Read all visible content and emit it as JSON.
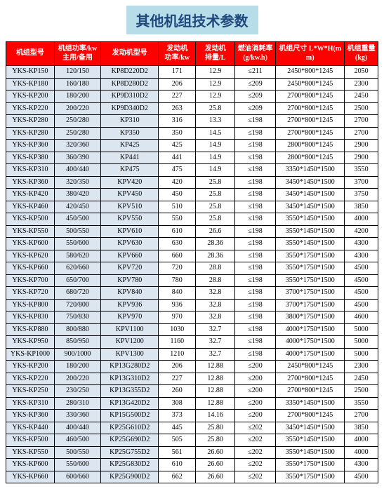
{
  "title": "其他机组技术参数",
  "columns": [
    "机组型号",
    "机组功率/kw\n主用/备用",
    "发动机型号",
    "发动机\n功率/kw",
    "发动机\n排量/L",
    "燃油消耗率\n(g/kw.h)",
    "机组尺寸 L*W*H(mm)",
    "机组重量\n(kg)"
  ],
  "rows": [
    [
      "YKS-KP150",
      "120/150",
      "KP8D220D2",
      "171",
      "12.9",
      "≤211",
      "2450*800*1245",
      "2050"
    ],
    [
      "YKS-KP180",
      "160/180",
      "KP8D280D2",
      "206",
      "12.9",
      "≤209",
      "2450*800*1245",
      "2300"
    ],
    [
      "YKS-KP200",
      "180/200",
      "KP9D310D2",
      "227",
      "12.9",
      "≤209",
      "2700*800*1245",
      "2450"
    ],
    [
      "YKS-KP220",
      "200/220",
      "KP9D340D2",
      "263",
      "25.8",
      "≤209",
      "2700*800*1245",
      "2500"
    ],
    [
      "YKS-KP280",
      "250/280",
      "KP310",
      "316",
      "13.3",
      "≤198",
      "2700*800*1245",
      "2700"
    ],
    [
      "YKS-KP280",
      "250/280",
      "KP350",
      "350",
      "14.5",
      "≤198",
      "2700*800*1245",
      "2700"
    ],
    [
      "YKS-KP360",
      "320/360",
      "KP425",
      "425",
      "14.9",
      "≤198",
      "2800*800*1245",
      "2900"
    ],
    [
      "YKS-KP380",
      "360/390",
      "KP441",
      "441",
      "14.9",
      "≤198",
      "2800*800*1245",
      "2900"
    ],
    [
      "YKS-KP310",
      "400/440",
      "KP475",
      "475",
      "14.9",
      "≤198",
      "3350*1450*1500",
      "3550"
    ],
    [
      "YKS-KP360",
      "320/350",
      "KPV420",
      "420",
      "25.8",
      "≤198",
      "3450*1450*1500",
      "3700"
    ],
    [
      "YKS-KP420",
      "380/420",
      "KPV450",
      "450",
      "25.8",
      "≤198",
      "3450*1450*1500",
      "3750"
    ],
    [
      "YKS-KP460",
      "420/450",
      "KPV510",
      "510",
      "25.8",
      "≤198",
      "3450*1450*1500",
      "3850"
    ],
    [
      "YKS-KP500",
      "450/500",
      "KPV550",
      "550",
      "25.8",
      "≤198",
      "3550*1450*1500",
      "4000"
    ],
    [
      "YKS-KP550",
      "500/550",
      "KPV610",
      "610",
      "26.6",
      "≤198",
      "3550*1450*1500",
      "4200"
    ],
    [
      "YKS-KP600",
      "550/600",
      "KPV630",
      "630",
      "28.36",
      "≤198",
      "3550*1450*1500",
      "4300"
    ],
    [
      "YKS-KP620",
      "580/620",
      "KPV660",
      "660",
      "28.36",
      "≤198",
      "3550*1750*1500",
      "4300"
    ],
    [
      "YKS-KP660",
      "620/660",
      "KPV720",
      "720",
      "28.8",
      "≤198",
      "3550*1750*1500",
      "4500"
    ],
    [
      "YKS-KP700",
      "650/700",
      "KPV780",
      "780",
      "28.8",
      "≤198",
      "3550*1750*1500",
      "4500"
    ],
    [
      "YKS-KP720",
      "680/720",
      "KPV840",
      "840",
      "32.8",
      "≤198",
      "3700*1750*1500",
      "4500"
    ],
    [
      "YKS-KP800",
      "720/800",
      "KPV936",
      "936",
      "32.8",
      "≤198",
      "3700*1750*1500",
      "4500"
    ],
    [
      "YKS-KP830",
      "750/830",
      "KPV970",
      "970",
      "32.8",
      "≤198",
      "3800*1750*1500",
      "4600"
    ],
    [
      "YKS-KP880",
      "800/880",
      "KPV1100",
      "1030",
      "32.7",
      "≤198",
      "4000*1750*1500",
      "5000"
    ],
    [
      "YKS-KP950",
      "850/950",
      "KPV1200",
      "1160",
      "32.7",
      "≤198",
      "4000*1750*1500",
      "5000"
    ],
    [
      "YKS-KP1000",
      "900/1000",
      "KPV1300",
      "1210",
      "32.7",
      "≤198",
      "4000*1750*1500",
      "5000"
    ],
    [
      "YKS-KP200",
      "180/200",
      "KP13G280D2",
      "206",
      "12.88",
      "≤200",
      "2450*800*1245",
      "2300"
    ],
    [
      "YKS-KP220",
      "200/220",
      "KP13G310D2",
      "227",
      "12.88",
      "≤200",
      "2700*800*1245",
      "2450"
    ],
    [
      "YKS-KP250",
      "230/250",
      "KP13G355D2",
      "260",
      "12.88",
      "≤200",
      "2700*800*1245",
      "2500"
    ],
    [
      "YKS-KP310",
      "280/310",
      "KP13G420D2",
      "308",
      "12.88",
      "≤200",
      "3350*1450*1500",
      "3550"
    ],
    [
      "YKS-KP360",
      "330/360",
      "KP15G500D2",
      "373",
      "14.16",
      "≤200",
      "2700*800*1245",
      "2700"
    ],
    [
      "YKS-KP440",
      "400/440",
      "KP25G610D2",
      "445",
      "25.80",
      "≤202",
      "3450*1450*1500",
      "3850"
    ],
    [
      "YKS-KP500",
      "460/500",
      "KP25G690D2",
      "505",
      "25.80",
      "≤202",
      "3550*1450*1500",
      "4000"
    ],
    [
      "YKS-KP550",
      "500/550",
      "KP25G755D2",
      "561",
      "26.60",
      "≤202",
      "3550*1450*1500",
      "4000"
    ],
    [
      "YKS-KP600",
      "550/600",
      "KP25G830D2",
      "610",
      "26.60",
      "≤202",
      "3550*1750*1500",
      "4300"
    ],
    [
      "YKS-KP660",
      "600/660",
      "KP25G900D2",
      "662",
      "26.60",
      "≤202",
      "3550*1750*1500",
      "4500"
    ]
  ],
  "col_widths_pct": [
    13,
    12.5,
    15.5,
    10,
    10.5,
    11,
    18.5,
    9
  ],
  "header_bg": "#ff0000",
  "header_fg": "#ffffff",
  "blue_cell_bg": "#dce6f1",
  "title_bg": "#b7dee8",
  "title_fg": "#1f497d",
  "title_fontsize": 20,
  "cell_fontsize": 10
}
